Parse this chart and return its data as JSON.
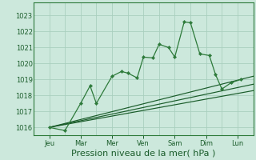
{
  "background_color": "#cce8dc",
  "grid_color": "#aacfbf",
  "line_color_dark": "#1a5c2a",
  "line_color_mid": "#2d7a3a",
  "xlabel": "Pression niveau de la mer( hPa )",
  "xlabel_fontsize": 8,
  "tick_fontsize": 6,
  "ylim": [
    1015.5,
    1023.8
  ],
  "yticks": [
    1016,
    1017,
    1018,
    1019,
    1020,
    1021,
    1022,
    1023
  ],
  "x_labels": [
    "Jeu",
    "Mar",
    "Mer",
    "Ven",
    "Sam",
    "Dim",
    "Lun"
  ],
  "x_tick_pos": [
    0.5,
    1.5,
    2.5,
    3.5,
    4.5,
    5.5,
    6.5
  ],
  "xlim": [
    0,
    7
  ],
  "series_main": {
    "x": [
      0.5,
      1.0,
      1.5,
      1.8,
      2.0,
      2.5,
      2.8,
      3.0,
      3.3,
      3.5,
      3.8,
      4.0,
      4.3,
      4.5,
      4.8,
      5.0,
      5.3,
      5.6,
      5.8,
      6.0,
      6.3,
      6.6
    ],
    "y": [
      1016.0,
      1015.8,
      1017.5,
      1018.6,
      1017.5,
      1019.2,
      1019.5,
      1019.4,
      1019.1,
      1020.4,
      1020.35,
      1021.2,
      1021.0,
      1020.4,
      1022.6,
      1022.55,
      1020.6,
      1020.5,
      1019.3,
      1018.4,
      1018.8,
      1019.0
    ]
  },
  "series_linear1": {
    "x": [
      0.5,
      7.0
    ],
    "y": [
      1016.0,
      1019.2
    ]
  },
  "series_linear2": {
    "x": [
      0.5,
      7.0
    ],
    "y": [
      1016.0,
      1018.7
    ]
  },
  "series_linear3": {
    "x": [
      0.5,
      7.0
    ],
    "y": [
      1016.0,
      1018.3
    ]
  },
  "figsize": [
    3.2,
    2.0
  ],
  "dpi": 100
}
